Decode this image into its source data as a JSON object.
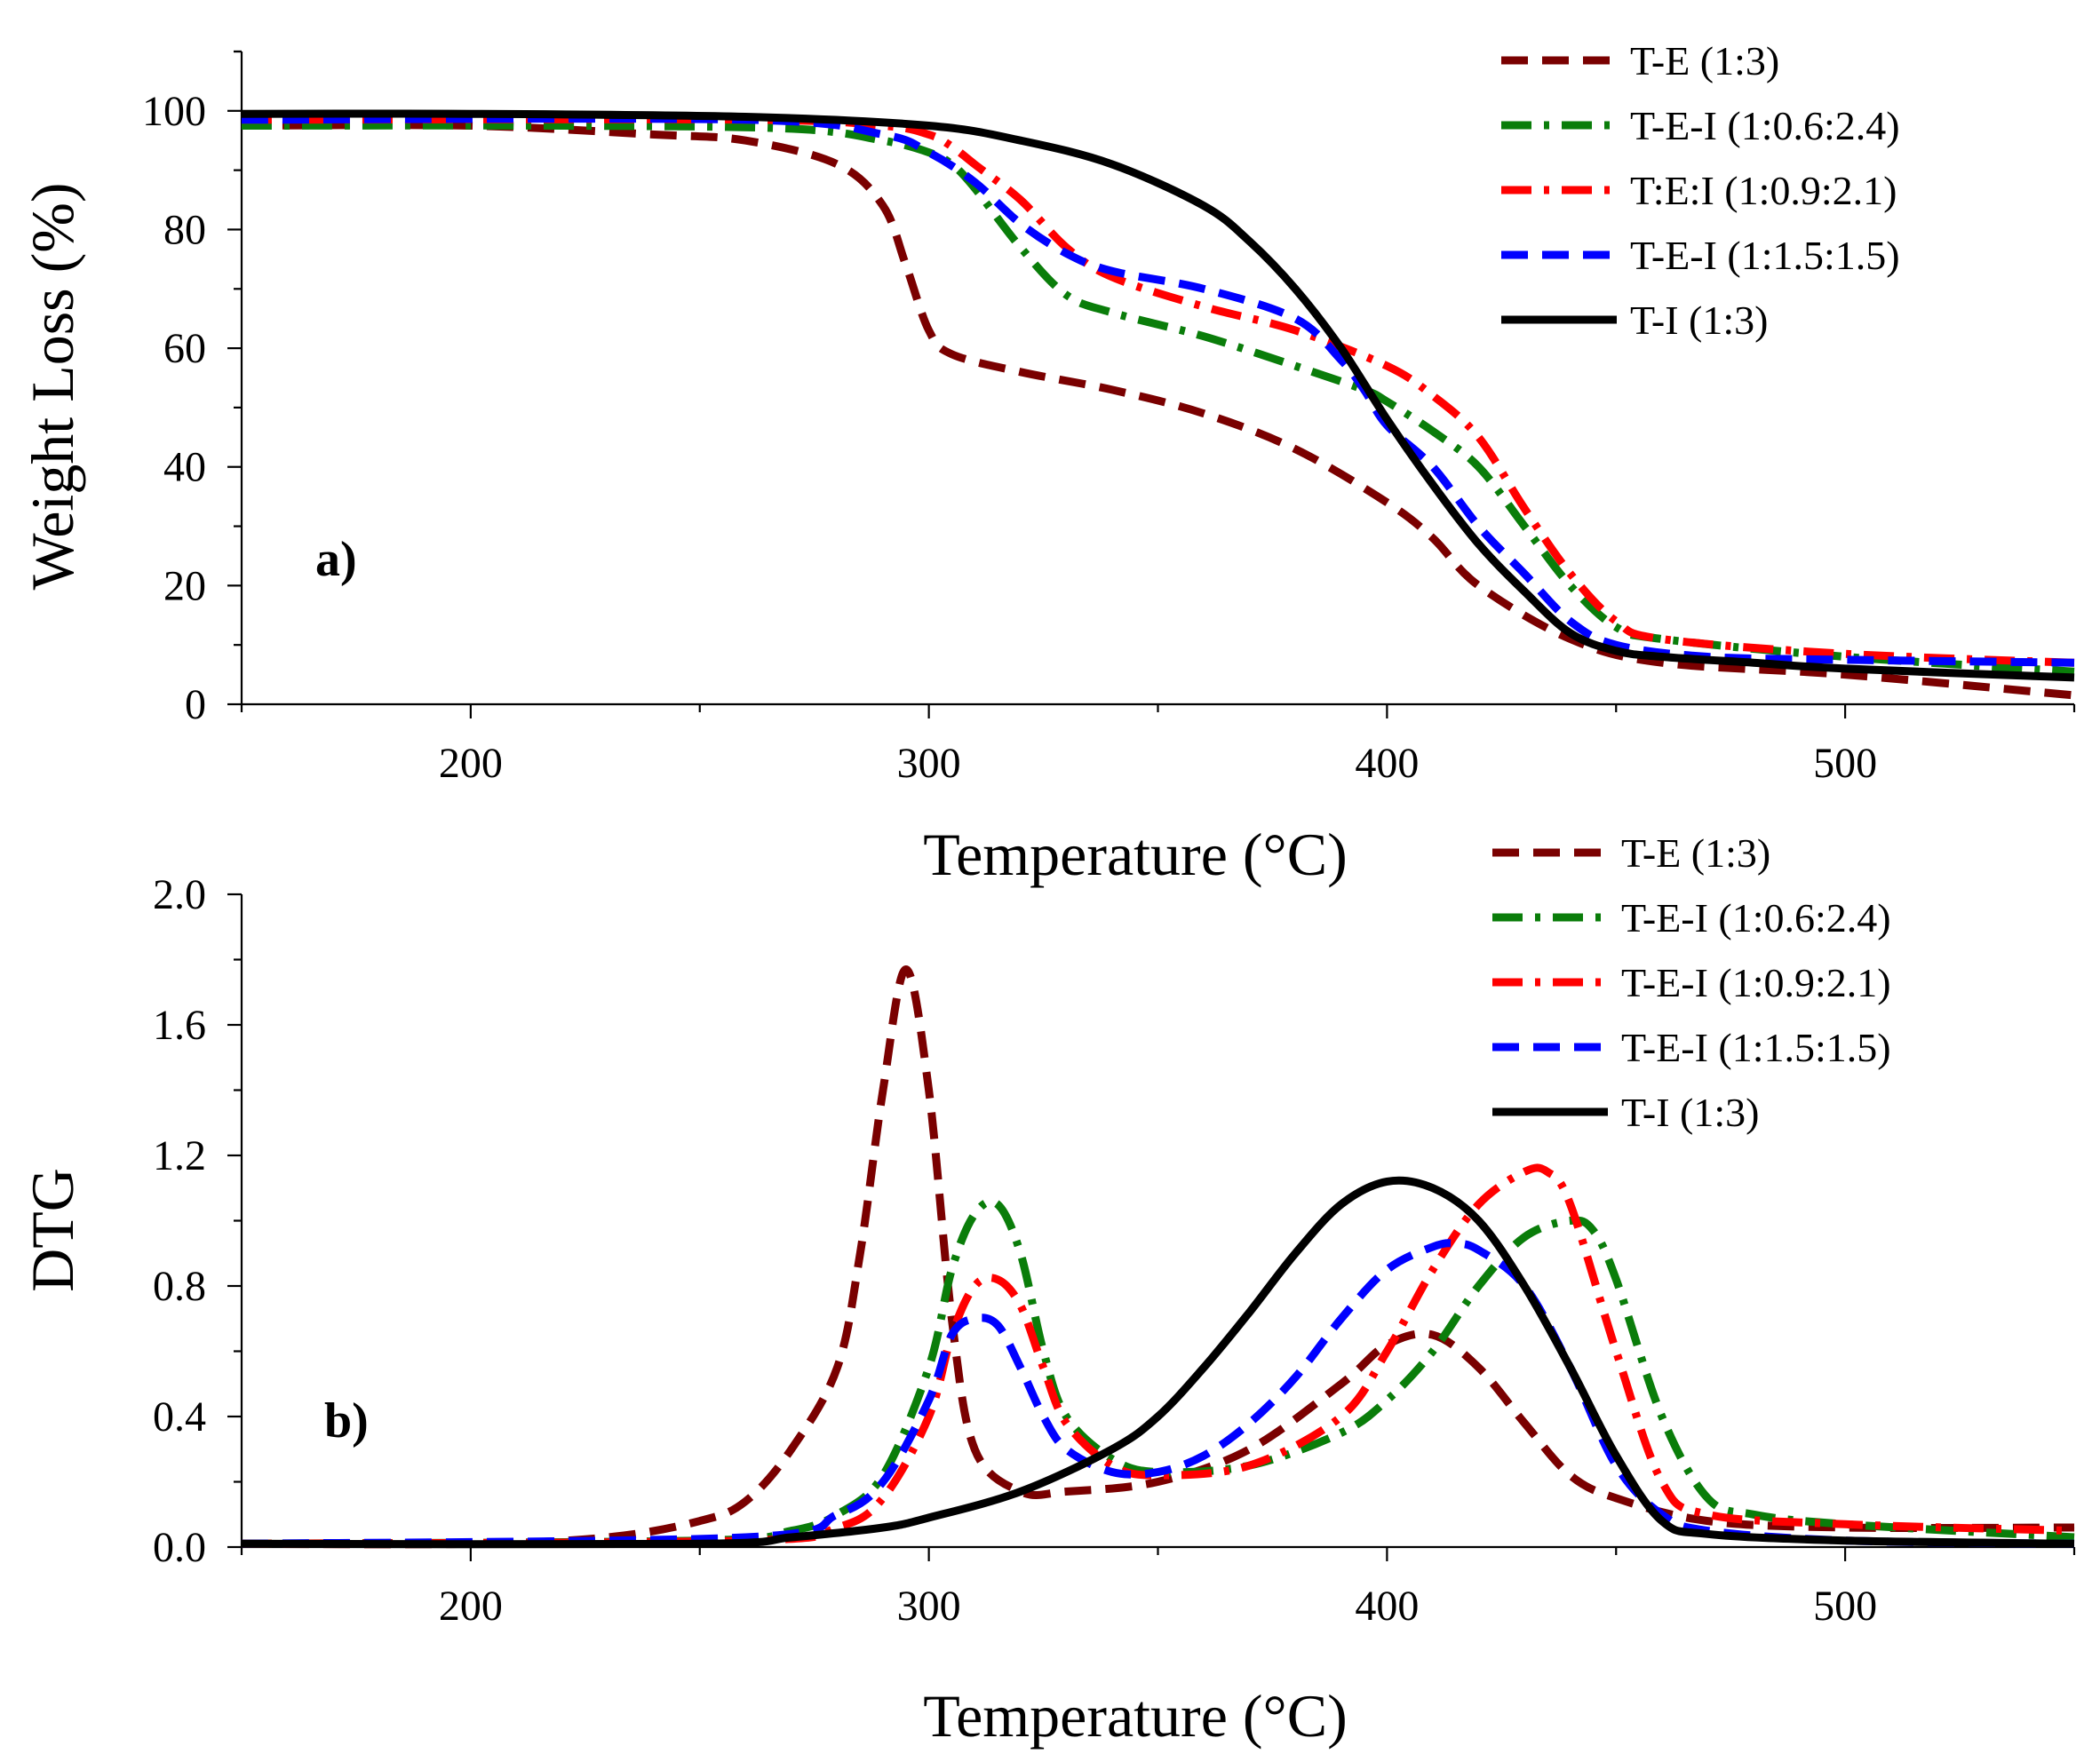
{
  "chart_data": [
    {
      "type": "line",
      "panel_label": "a)",
      "xlabel": "Temperature (°C)",
      "ylabel": "Weight Loss (%)",
      "xlim": [
        150,
        550
      ],
      "ylim": [
        0,
        110
      ],
      "xticks": [
        200,
        300,
        400,
        500
      ],
      "yticks": [
        0,
        20,
        40,
        60,
        80,
        100
      ],
      "legend": "top-right",
      "series": [
        {
          "name": "T-E (1:3)",
          "color": "#7a0000",
          "dash": "dash",
          "x": [
            150,
            200,
            240,
            260,
            280,
            290,
            295,
            300,
            305,
            320,
            340,
            360,
            380,
            400,
            410,
            420,
            440,
            460,
            500,
            550
          ],
          "y": [
            97.5,
            97.5,
            96,
            95,
            91,
            84,
            74,
            63,
            59,
            56,
            53,
            49,
            43,
            34,
            28,
            20,
            11,
            7,
            5,
            1.5
          ]
        },
        {
          "name": "T-E-I (1:0.6:2.4)",
          "color": "#0a7d0a",
          "dash": "dashdot",
          "x": [
            150,
            220,
            270,
            290,
            300,
            305,
            310,
            320,
            330,
            340,
            360,
            380,
            395,
            400,
            410,
            420,
            430,
            440,
            450,
            460,
            500,
            550
          ],
          "y": [
            97.5,
            97.5,
            97,
            95,
            93,
            91,
            87,
            77,
            69,
            66,
            62,
            57,
            53,
            51,
            46,
            40,
            30,
            20,
            13,
            11,
            8,
            5.5
          ]
        },
        {
          "name": "T:E:I (1:0.9:2.1)",
          "color": "#ff0000",
          "dash": "dashdot",
          "x": [
            150,
            260,
            290,
            300,
            305,
            310,
            320,
            330,
            340,
            360,
            380,
            400,
            410,
            420,
            430,
            440,
            450,
            460,
            500,
            550
          ],
          "y": [
            98.5,
            98.5,
            97.5,
            96,
            94,
            91,
            85,
            77,
            72,
            67,
            63,
            57,
            52,
            45,
            33,
            22,
            14,
            11,
            8.5,
            7
          ]
        },
        {
          "name": "T-E-I (1:1.5:1.5)",
          "color": "#0000ff",
          "dash": "dash",
          "x": [
            150,
            260,
            290,
            300,
            310,
            320,
            330,
            340,
            360,
            380,
            390,
            395,
            400,
            410,
            420,
            430,
            440,
            450,
            470,
            500,
            550
          ],
          "y": [
            98.5,
            98.5,
            96,
            93,
            88,
            81,
            76,
            73,
            70,
            65,
            58,
            53,
            47,
            40,
            30,
            22,
            14,
            10,
            8,
            7.5,
            7
          ]
        },
        {
          "name": "T-I (1:3)",
          "color": "#000000",
          "dash": "solid",
          "x": [
            150,
            200,
            260,
            300,
            320,
            340,
            360,
            370,
            380,
            390,
            400,
            410,
            420,
            430,
            440,
            450,
            460,
            480,
            500,
            550
          ],
          "y": [
            99.5,
            99.5,
            99,
            97.5,
            95,
            91,
            84,
            78,
            70,
            60,
            48,
            37,
            27,
            19,
            12,
            9,
            8,
            7,
            6,
            4.5
          ]
        }
      ]
    },
    {
      "type": "line",
      "panel_label": "b)",
      "xlabel": "Temperature (°C)",
      "ylabel": "DTG",
      "xlim": [
        150,
        550
      ],
      "ylim": [
        0,
        2.0
      ],
      "xticks": [
        200,
        300,
        400,
        500
      ],
      "yticks": [
        "0.0",
        "0.4",
        "0.8",
        "1.2",
        "1.6",
        "2.0"
      ],
      "legend": "top-right",
      "series": [
        {
          "name": "T-E (1:3)",
          "color": "#7a0000",
          "dash": "dash",
          "x": [
            150,
            200,
            230,
            250,
            260,
            270,
            280,
            285,
            290,
            295,
            300,
            305,
            310,
            320,
            330,
            350,
            370,
            390,
            400,
            410,
            420,
            430,
            440,
            450,
            470,
            500,
            550
          ],
          "y": [
            0.01,
            0.01,
            0.03,
            0.08,
            0.14,
            0.3,
            0.55,
            0.9,
            1.4,
            1.77,
            1.4,
            0.7,
            0.3,
            0.17,
            0.17,
            0.2,
            0.3,
            0.5,
            0.62,
            0.65,
            0.55,
            0.38,
            0.22,
            0.15,
            0.08,
            0.06,
            0.06
          ]
        },
        {
          "name": "T-E-I (1:0.6:2.4)",
          "color": "#0a7d0a",
          "dash": "dashdot",
          "x": [
            150,
            250,
            270,
            280,
            290,
            300,
            305,
            310,
            315,
            320,
            325,
            330,
            340,
            350,
            370,
            390,
            400,
            410,
            420,
            430,
            440,
            445,
            450,
            460,
            470,
            480,
            500,
            550
          ],
          "y": [
            0.01,
            0.02,
            0.05,
            0.1,
            0.22,
            0.55,
            0.85,
            1.02,
            1.05,
            0.9,
            0.6,
            0.4,
            0.27,
            0.23,
            0.25,
            0.35,
            0.45,
            0.6,
            0.8,
            0.95,
            1.0,
            0.97,
            0.82,
            0.4,
            0.15,
            0.1,
            0.07,
            0.03
          ]
        },
        {
          "name": "T-E-I (1:0.9:2.1)",
          "color": "#ff0000",
          "dash": "dashdot",
          "x": [
            150,
            260,
            280,
            290,
            300,
            305,
            310,
            315,
            320,
            325,
            330,
            340,
            350,
            370,
            390,
            400,
            410,
            420,
            430,
            435,
            440,
            450,
            460,
            470,
            500,
            550
          ],
          "y": [
            0.01,
            0.02,
            0.06,
            0.15,
            0.4,
            0.65,
            0.8,
            0.82,
            0.74,
            0.55,
            0.38,
            0.25,
            0.22,
            0.25,
            0.4,
            0.6,
            0.85,
            1.05,
            1.15,
            1.15,
            1.05,
            0.6,
            0.2,
            0.1,
            0.07,
            0.05
          ]
        },
        {
          "name": "T-E-I (1:1.5:1.5)",
          "color": "#0000ff",
          "dash": "dash",
          "x": [
            150,
            260,
            280,
            290,
            300,
            305,
            310,
            315,
            320,
            325,
            330,
            340,
            350,
            360,
            370,
            380,
            390,
            400,
            410,
            415,
            420,
            430,
            440,
            450,
            460,
            470,
            500,
            550
          ],
          "y": [
            0.01,
            0.03,
            0.1,
            0.2,
            0.45,
            0.65,
            0.7,
            0.68,
            0.55,
            0.4,
            0.3,
            0.23,
            0.23,
            0.28,
            0.38,
            0.52,
            0.7,
            0.85,
            0.92,
            0.93,
            0.91,
            0.8,
            0.55,
            0.25,
            0.1,
            0.05,
            0.02,
            0.01
          ]
        },
        {
          "name": "T-I (1:3)",
          "color": "#000000",
          "dash": "solid",
          "x": [
            150,
            250,
            270,
            290,
            300,
            320,
            340,
            350,
            360,
            370,
            380,
            390,
            400,
            410,
            420,
            430,
            440,
            450,
            460,
            470,
            500,
            550
          ],
          "y": [
            0.01,
            0.01,
            0.03,
            0.06,
            0.09,
            0.17,
            0.3,
            0.4,
            0.55,
            0.72,
            0.9,
            1.05,
            1.12,
            1.1,
            1.0,
            0.8,
            0.55,
            0.28,
            0.08,
            0.04,
            0.02,
            0.01
          ]
        }
      ]
    }
  ]
}
